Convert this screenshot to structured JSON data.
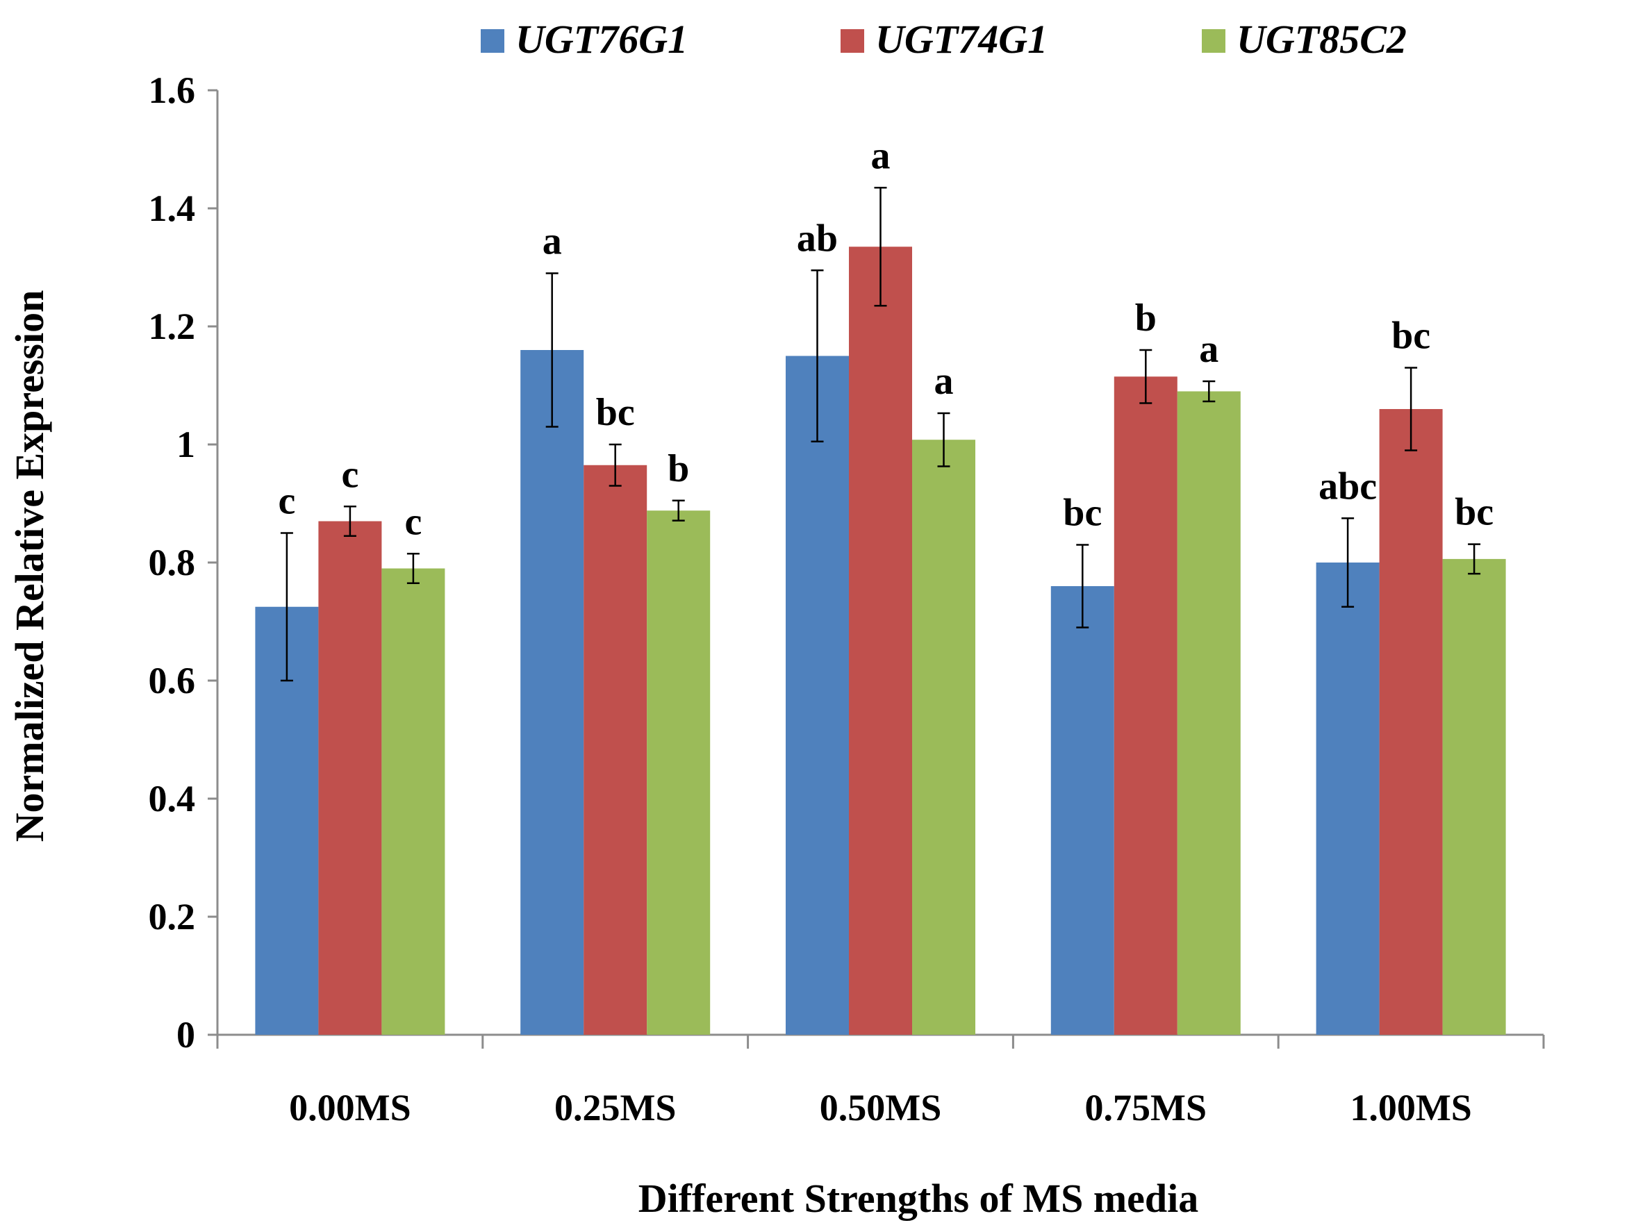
{
  "chart_data": {
    "type": "bar",
    "title": "",
    "xlabel": "Different Strengths of MS media",
    "ylabel": "Normalized Relative Expression",
    "ylim": [
      0,
      1.6
    ],
    "yticks": [
      "0",
      "0.2",
      "0.4",
      "0.6",
      "0.8",
      "1",
      "1.2",
      "1.4",
      "1.6"
    ],
    "categories": [
      "0.00MS",
      "0.25MS",
      "0.50MS",
      "0.75MS",
      "1.00MS"
    ],
    "legend_position": "top",
    "series": [
      {
        "name": "UGT76G1",
        "color": "#4f81bd",
        "values": [
          0.725,
          1.16,
          1.15,
          0.76,
          0.8
        ],
        "errors": [
          0.125,
          0.13,
          0.145,
          0.07,
          0.075
        ],
        "letters": [
          "c",
          "a",
          "ab",
          "bc",
          "abc"
        ]
      },
      {
        "name": "UGT74G1",
        "color": "#c0504d",
        "values": [
          0.87,
          0.965,
          1.335,
          1.115,
          1.06
        ],
        "errors": [
          0.025,
          0.035,
          0.1,
          0.045,
          0.07
        ],
        "letters": [
          "c",
          "bc",
          "a",
          "b",
          "bc"
        ]
      },
      {
        "name": "UGT85C2",
        "color": "#9bbb59",
        "values": [
          0.79,
          0.888,
          1.008,
          1.09,
          0.806
        ],
        "errors": [
          0.025,
          0.017,
          0.045,
          0.017,
          0.025
        ],
        "letters": [
          "c",
          "b",
          "a",
          "a",
          "bc"
        ]
      }
    ]
  }
}
